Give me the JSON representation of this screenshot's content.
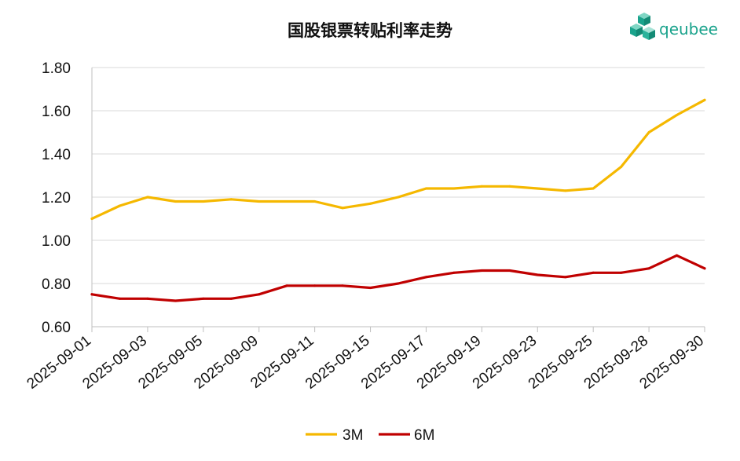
{
  "brand": {
    "name": "qeubee",
    "color": "#1aa38c"
  },
  "chart_data": {
    "type": "line",
    "title": "国股银票转贴利率走势",
    "xlabel": "",
    "ylabel": "",
    "ylim": [
      0.6,
      1.8
    ],
    "yticks": [
      "0.60",
      "0.80",
      "1.00",
      "1.20",
      "1.40",
      "1.60",
      "1.80"
    ],
    "grid": true,
    "legend": "bottom",
    "x": [
      "2025-09-01",
      "2025-09-02",
      "2025-09-03",
      "2025-09-04",
      "2025-09-05",
      "2025-09-08",
      "2025-09-09",
      "2025-09-10",
      "2025-09-11",
      "2025-09-12",
      "2025-09-15",
      "2025-09-16",
      "2025-09-17",
      "2025-09-18",
      "2025-09-19",
      "2025-09-22",
      "2025-09-23",
      "2025-09-24",
      "2025-09-25",
      "2025-09-26",
      "2025-09-28",
      "2025-09-29",
      "2025-09-30"
    ],
    "xticks": [
      "2025-09-01",
      "2025-09-03",
      "2025-09-05",
      "2025-09-09",
      "2025-09-11",
      "2025-09-15",
      "2025-09-17",
      "2025-09-19",
      "2025-09-23",
      "2025-09-25",
      "2025-09-28",
      "2025-09-30"
    ],
    "series": [
      {
        "name": "3M",
        "color": "#f5b800",
        "values": [
          1.1,
          1.16,
          1.2,
          1.18,
          1.18,
          1.19,
          1.18,
          1.18,
          1.18,
          1.15,
          1.17,
          1.2,
          1.24,
          1.24,
          1.25,
          1.25,
          1.24,
          1.23,
          1.24,
          1.34,
          1.5,
          1.58,
          1.65
        ]
      },
      {
        "name": "6M",
        "color": "#c00000",
        "values": [
          0.75,
          0.73,
          0.73,
          0.72,
          0.73,
          0.73,
          0.75,
          0.79,
          0.79,
          0.79,
          0.78,
          0.8,
          0.83,
          0.85,
          0.86,
          0.86,
          0.84,
          0.83,
          0.85,
          0.85,
          0.87,
          0.93,
          0.87
        ]
      }
    ]
  }
}
